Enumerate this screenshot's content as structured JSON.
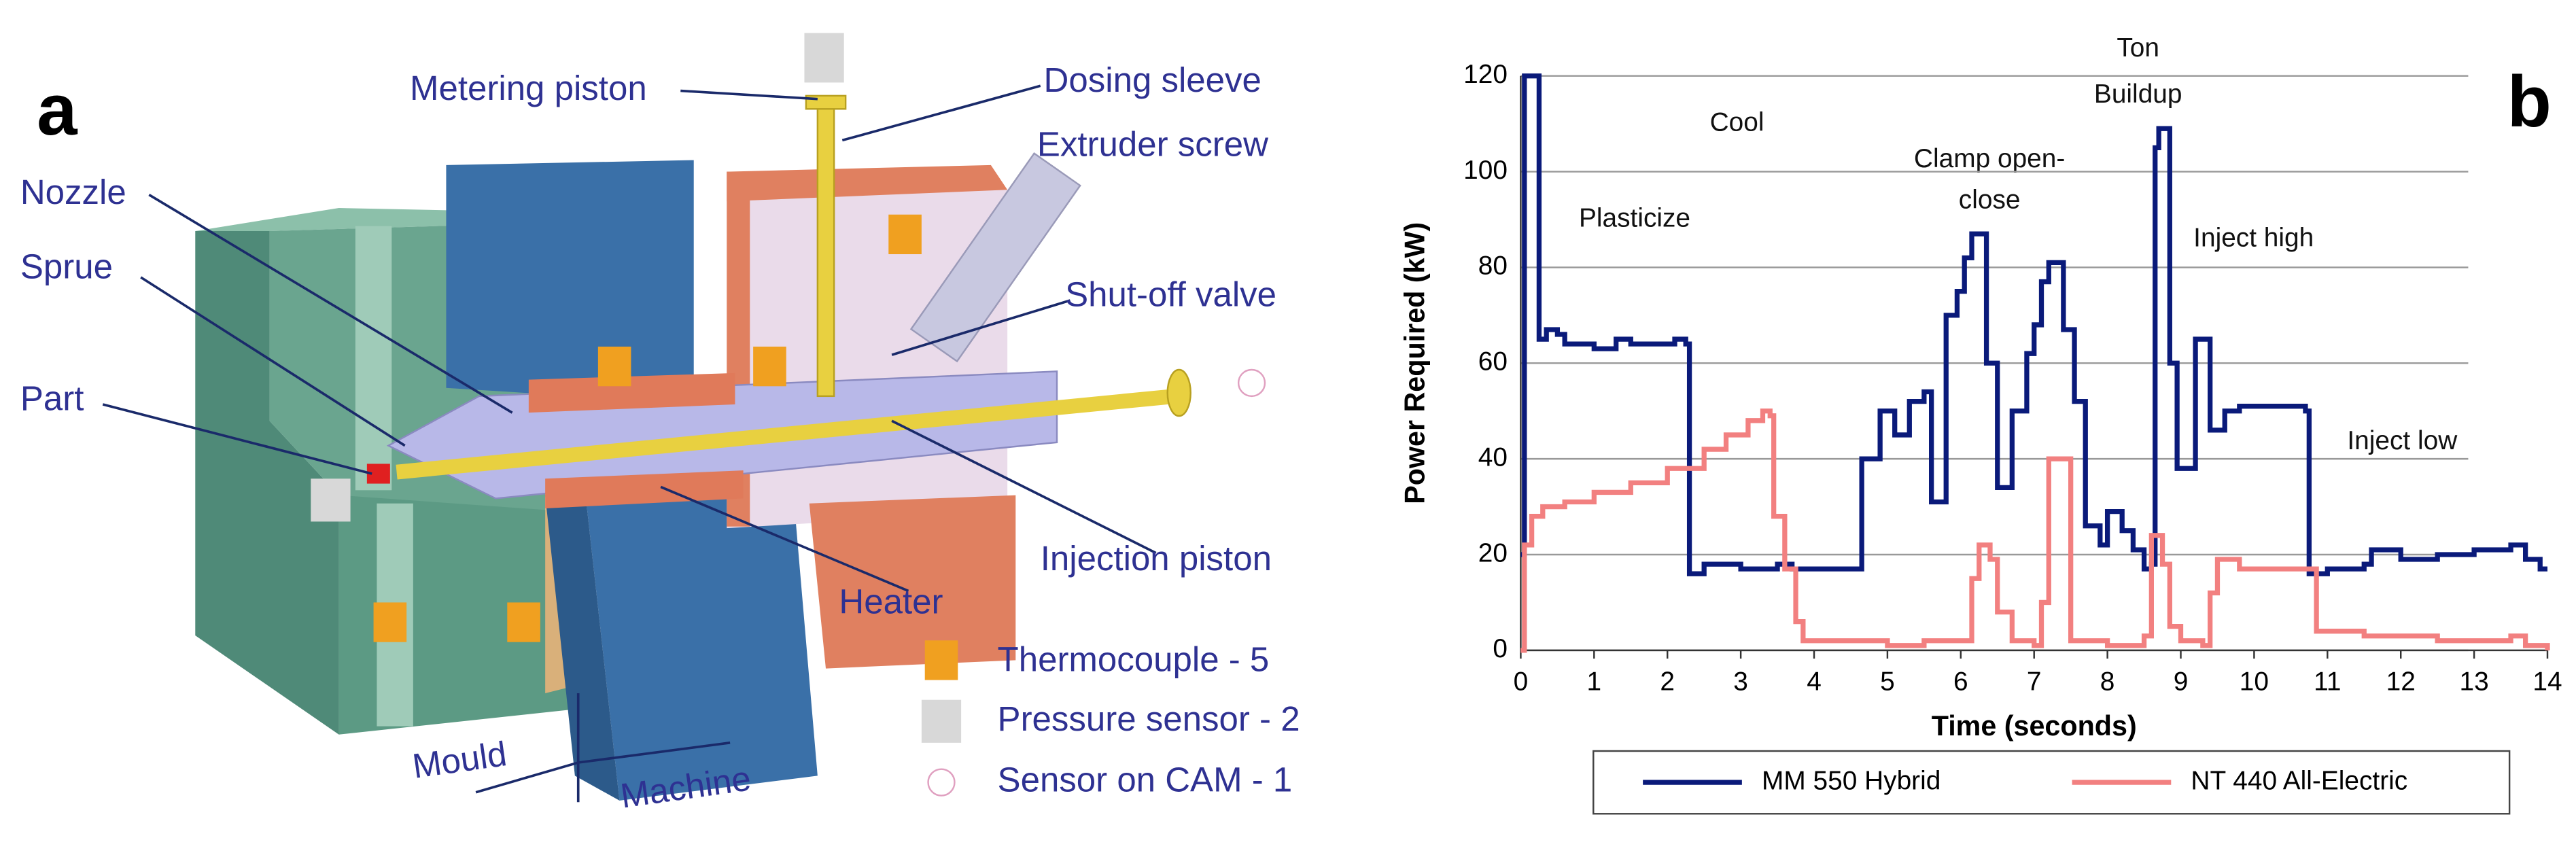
{
  "diagram": {
    "panel_label": "a",
    "labels": [
      "Metering piston",
      "Dosing sleeve",
      "Extruder screw",
      "Nozzle",
      "Sprue",
      "Shut-off valve",
      "Part",
      "Injection piston",
      "Heater",
      "Mould",
      "Machine"
    ],
    "legend": [
      "Thermocouple - 5",
      "Pressure sensor -  2",
      "Sensor on CAM - 1"
    ]
  },
  "chart_data": {
    "type": "line",
    "panel_label": "b",
    "xlabel": "Time (seconds)",
    "ylabel": "Power Required (kW)",
    "annotations": [
      "Ton",
      "Buildup",
      "Cool",
      "Clamp open-",
      "close",
      "Plasticize",
      "Inject high",
      "Inject low"
    ],
    "step": true,
    "xlim": [
      0,
      14
    ],
    "ylim": [
      0,
      120
    ],
    "xticks": [
      0,
      1,
      2,
      3,
      4,
      5,
      6,
      7,
      8,
      9,
      10,
      11,
      12,
      13,
      14
    ],
    "yticks": [
      0,
      20,
      40,
      60,
      80,
      100,
      120
    ],
    "grid": true,
    "legend": "bottom",
    "series": [
      {
        "name": "MM 550 Hybrid",
        "color": "#0a1a7a",
        "x": [
          0,
          0.05,
          0.2,
          0.25,
          0.35,
          0.5,
          0.6,
          1.0,
          1.3,
          1.5,
          2.0,
          2.1,
          2.25,
          2.3,
          2.5,
          3.0,
          3.5,
          3.7,
          4.0,
          4.6,
          4.65,
          4.85,
          4.9,
          5.1,
          5.3,
          5.5,
          5.6,
          5.75,
          5.8,
          5.95,
          6.05,
          6.15,
          6.3,
          6.35,
          6.5,
          6.65,
          6.7,
          6.9,
          7.0,
          7.1,
          7.2,
          7.35,
          7.4,
          7.55,
          7.7,
          7.9,
          8.0,
          8.2,
          8.35,
          8.5,
          8.6,
          8.65,
          8.7,
          8.8,
          8.85,
          8.95,
          9.1,
          9.2,
          9.35,
          9.4,
          9.6,
          9.8,
          10.2,
          10.7,
          10.75,
          11.0,
          11.5,
          11.6,
          12.0,
          12.5,
          13.0,
          13.5,
          13.7,
          13.9,
          14.0
        ],
        "values": [
          20,
          120,
          120,
          65,
          67,
          66,
          64,
          63,
          65,
          64,
          64,
          65,
          64,
          16,
          18,
          17,
          18,
          17,
          17,
          17,
          40,
          40,
          50,
          45,
          52,
          54,
          31,
          31,
          70,
          75,
          82,
          87,
          87,
          60,
          34,
          34,
          50,
          62,
          68,
          77,
          81,
          81,
          67,
          52,
          26,
          22,
          29,
          25,
          21,
          17,
          18,
          105,
          109,
          109,
          60,
          38,
          38,
          65,
          65,
          46,
          50,
          51,
          51,
          50,
          16,
          17,
          18,
          21,
          19,
          20,
          21,
          22,
          19,
          17,
          17
        ]
      },
      {
        "name": "NT 440  All-Electric",
        "color": "#f28080",
        "x": [
          0,
          0.05,
          0.15,
          0.3,
          0.6,
          1.0,
          1.5,
          2.0,
          2.5,
          2.8,
          3.1,
          3.3,
          3.4,
          3.45,
          3.6,
          3.75,
          3.85,
          4.5,
          5.0,
          5.5,
          6.0,
          6.15,
          6.25,
          6.4,
          6.5,
          6.7,
          7.0,
          7.1,
          7.2,
          7.45,
          7.5,
          8.0,
          8.5,
          8.6,
          8.75,
          8.85,
          9.0,
          9.3,
          9.4,
          9.5,
          9.8,
          10.8,
          10.85,
          11.5,
          12.5,
          13.5,
          13.7,
          14.0
        ],
        "values": [
          0,
          22,
          28,
          30,
          31,
          33,
          35,
          38,
          42,
          45,
          48,
          50,
          49,
          28,
          17,
          6,
          2,
          2,
          1,
          2,
          2,
          15,
          22,
          19,
          8,
          2,
          1,
          10,
          40,
          40,
          2,
          1,
          3,
          24,
          18,
          5,
          2,
          1,
          12,
          19,
          17,
          17,
          4,
          3,
          2,
          3,
          1,
          0
        ]
      }
    ]
  }
}
